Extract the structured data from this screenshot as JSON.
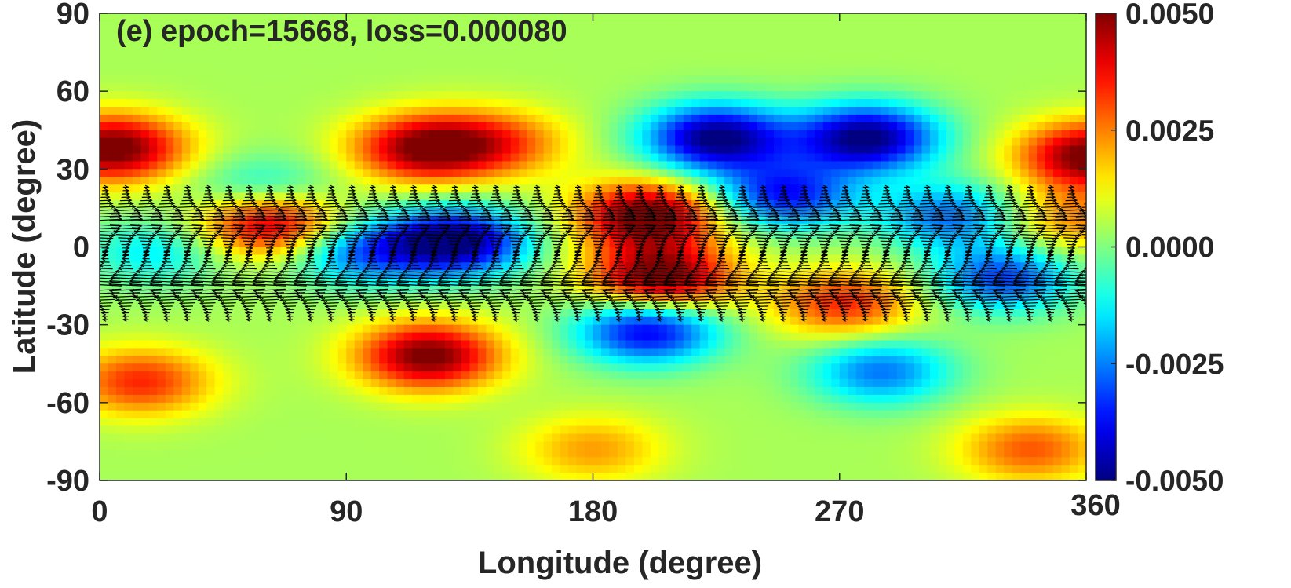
{
  "chart_data": {
    "type": "heatmap",
    "title": "(e) epoch=15668, loss=0.000080",
    "xlabel": "Longitude (degree)",
    "ylabel": "Latitude (degree)",
    "xlim": [
      0,
      360
    ],
    "ylim": [
      -90,
      90
    ],
    "x_ticks": [
      "0",
      "90",
      "180",
      "270",
      "360"
    ],
    "y_ticks": [
      "90",
      "60",
      "30",
      "0",
      "-30",
      "-60",
      "-90"
    ],
    "colorbar": {
      "colormap": "jet",
      "range": [
        -0.005,
        0.005
      ],
      "ticks": [
        "0.0050",
        "0.0025",
        "0.0000",
        "-0.0025",
        "-0.0050"
      ]
    },
    "background_value": 0.0004,
    "field_blobs": [
      {
        "lon": 5,
        "lat": 38,
        "value": 0.005
      },
      {
        "lon": 362,
        "lat": 35,
        "value": 0.005
      },
      {
        "lon": 118,
        "lat": 38,
        "value": 0.0044
      },
      {
        "lon": 145,
        "lat": 40,
        "value": 0.0025
      },
      {
        "lon": 62,
        "lat": 10,
        "value": 0.005
      },
      {
        "lon": 200,
        "lat": 12,
        "value": 0.005
      },
      {
        "lon": 205,
        "lat": -12,
        "value": 0.005
      },
      {
        "lon": 120,
        "lat": -42,
        "value": 0.0048
      },
      {
        "lon": 272,
        "lat": -22,
        "value": 0.003
      },
      {
        "lon": 355,
        "lat": 10,
        "value": 0.002
      },
      {
        "lon": 225,
        "lat": 42,
        "value": -0.0055
      },
      {
        "lon": 280,
        "lat": 42,
        "value": -0.0055
      },
      {
        "lon": 250,
        "lat": 20,
        "value": -0.004
      },
      {
        "lon": 310,
        "lat": 12,
        "value": -0.003
      },
      {
        "lon": 130,
        "lat": 2,
        "value": -0.0055
      },
      {
        "lon": 95,
        "lat": -2,
        "value": -0.003
      },
      {
        "lon": 60,
        "lat": 20,
        "value": -0.0025
      },
      {
        "lon": 200,
        "lat": -32,
        "value": -0.0045
      },
      {
        "lon": 285,
        "lat": -48,
        "value": -0.003
      },
      {
        "lon": 330,
        "lat": -12,
        "value": -0.0035
      },
      {
        "lon": 20,
        "lat": -2,
        "value": -0.0018
      },
      {
        "lon": 15,
        "lat": -52,
        "value": 0.003
      },
      {
        "lon": 180,
        "lat": -78,
        "value": 0.0018
      },
      {
        "lon": 340,
        "lat": -78,
        "value": 0.0025
      }
    ],
    "vector_bands": [
      {
        "lat": 10,
        "direction": "east",
        "lon_spacing": 7.5,
        "amplitude_deg": 14
      },
      {
        "lat": -15,
        "direction": "west",
        "lon_spacing": 7.5,
        "amplitude_deg": 14
      }
    ]
  }
}
